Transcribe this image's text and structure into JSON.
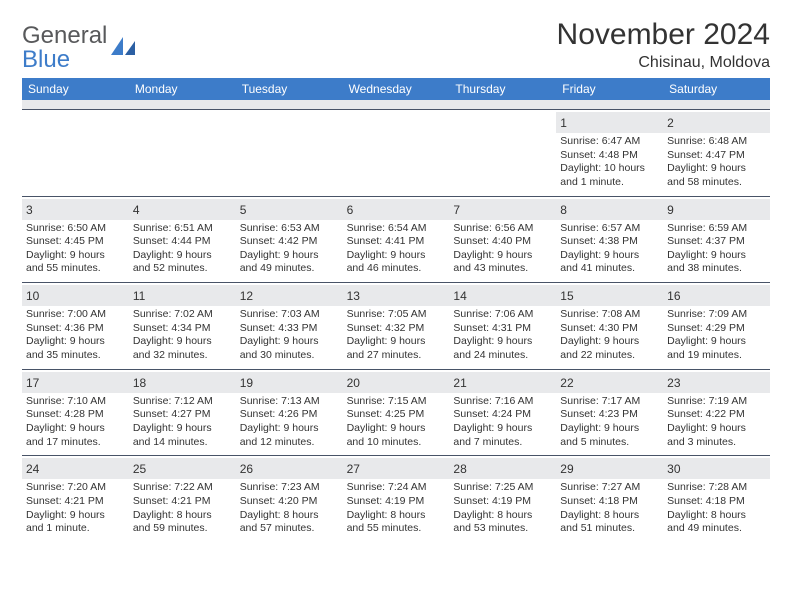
{
  "logo": {
    "word1": "General",
    "word2": "Blue",
    "accent_color": "#3d7cc9",
    "text_color": "#58595b"
  },
  "title": "November 2024",
  "subtitle": "Chisinau, Moldova",
  "header_bg": "#3d7cc9",
  "header_fg": "#ffffff",
  "daynum_bg": "#e8e9eb",
  "border_color": "#485367",
  "text_color": "#333333",
  "weekdays": [
    "Sunday",
    "Monday",
    "Tuesday",
    "Wednesday",
    "Thursday",
    "Friday",
    "Saturday"
  ],
  "weeks": [
    [
      {
        "n": "",
        "sr": "",
        "ss": "",
        "dl": ""
      },
      {
        "n": "",
        "sr": "",
        "ss": "",
        "dl": ""
      },
      {
        "n": "",
        "sr": "",
        "ss": "",
        "dl": ""
      },
      {
        "n": "",
        "sr": "",
        "ss": "",
        "dl": ""
      },
      {
        "n": "",
        "sr": "",
        "ss": "",
        "dl": ""
      },
      {
        "n": "1",
        "sr": "Sunrise: 6:47 AM",
        "ss": "Sunset: 4:48 PM",
        "dl": "Daylight: 10 hours and 1 minute."
      },
      {
        "n": "2",
        "sr": "Sunrise: 6:48 AM",
        "ss": "Sunset: 4:47 PM",
        "dl": "Daylight: 9 hours and 58 minutes."
      }
    ],
    [
      {
        "n": "3",
        "sr": "Sunrise: 6:50 AM",
        "ss": "Sunset: 4:45 PM",
        "dl": "Daylight: 9 hours and 55 minutes."
      },
      {
        "n": "4",
        "sr": "Sunrise: 6:51 AM",
        "ss": "Sunset: 4:44 PM",
        "dl": "Daylight: 9 hours and 52 minutes."
      },
      {
        "n": "5",
        "sr": "Sunrise: 6:53 AM",
        "ss": "Sunset: 4:42 PM",
        "dl": "Daylight: 9 hours and 49 minutes."
      },
      {
        "n": "6",
        "sr": "Sunrise: 6:54 AM",
        "ss": "Sunset: 4:41 PM",
        "dl": "Daylight: 9 hours and 46 minutes."
      },
      {
        "n": "7",
        "sr": "Sunrise: 6:56 AM",
        "ss": "Sunset: 4:40 PM",
        "dl": "Daylight: 9 hours and 43 minutes."
      },
      {
        "n": "8",
        "sr": "Sunrise: 6:57 AM",
        "ss": "Sunset: 4:38 PM",
        "dl": "Daylight: 9 hours and 41 minutes."
      },
      {
        "n": "9",
        "sr": "Sunrise: 6:59 AM",
        "ss": "Sunset: 4:37 PM",
        "dl": "Daylight: 9 hours and 38 minutes."
      }
    ],
    [
      {
        "n": "10",
        "sr": "Sunrise: 7:00 AM",
        "ss": "Sunset: 4:36 PM",
        "dl": "Daylight: 9 hours and 35 minutes."
      },
      {
        "n": "11",
        "sr": "Sunrise: 7:02 AM",
        "ss": "Sunset: 4:34 PM",
        "dl": "Daylight: 9 hours and 32 minutes."
      },
      {
        "n": "12",
        "sr": "Sunrise: 7:03 AM",
        "ss": "Sunset: 4:33 PM",
        "dl": "Daylight: 9 hours and 30 minutes."
      },
      {
        "n": "13",
        "sr": "Sunrise: 7:05 AM",
        "ss": "Sunset: 4:32 PM",
        "dl": "Daylight: 9 hours and 27 minutes."
      },
      {
        "n": "14",
        "sr": "Sunrise: 7:06 AM",
        "ss": "Sunset: 4:31 PM",
        "dl": "Daylight: 9 hours and 24 minutes."
      },
      {
        "n": "15",
        "sr": "Sunrise: 7:08 AM",
        "ss": "Sunset: 4:30 PM",
        "dl": "Daylight: 9 hours and 22 minutes."
      },
      {
        "n": "16",
        "sr": "Sunrise: 7:09 AM",
        "ss": "Sunset: 4:29 PM",
        "dl": "Daylight: 9 hours and 19 minutes."
      }
    ],
    [
      {
        "n": "17",
        "sr": "Sunrise: 7:10 AM",
        "ss": "Sunset: 4:28 PM",
        "dl": "Daylight: 9 hours and 17 minutes."
      },
      {
        "n": "18",
        "sr": "Sunrise: 7:12 AM",
        "ss": "Sunset: 4:27 PM",
        "dl": "Daylight: 9 hours and 14 minutes."
      },
      {
        "n": "19",
        "sr": "Sunrise: 7:13 AM",
        "ss": "Sunset: 4:26 PM",
        "dl": "Daylight: 9 hours and 12 minutes."
      },
      {
        "n": "20",
        "sr": "Sunrise: 7:15 AM",
        "ss": "Sunset: 4:25 PM",
        "dl": "Daylight: 9 hours and 10 minutes."
      },
      {
        "n": "21",
        "sr": "Sunrise: 7:16 AM",
        "ss": "Sunset: 4:24 PM",
        "dl": "Daylight: 9 hours and 7 minutes."
      },
      {
        "n": "22",
        "sr": "Sunrise: 7:17 AM",
        "ss": "Sunset: 4:23 PM",
        "dl": "Daylight: 9 hours and 5 minutes."
      },
      {
        "n": "23",
        "sr": "Sunrise: 7:19 AM",
        "ss": "Sunset: 4:22 PM",
        "dl": "Daylight: 9 hours and 3 minutes."
      }
    ],
    [
      {
        "n": "24",
        "sr": "Sunrise: 7:20 AM",
        "ss": "Sunset: 4:21 PM",
        "dl": "Daylight: 9 hours and 1 minute."
      },
      {
        "n": "25",
        "sr": "Sunrise: 7:22 AM",
        "ss": "Sunset: 4:21 PM",
        "dl": "Daylight: 8 hours and 59 minutes."
      },
      {
        "n": "26",
        "sr": "Sunrise: 7:23 AM",
        "ss": "Sunset: 4:20 PM",
        "dl": "Daylight: 8 hours and 57 minutes."
      },
      {
        "n": "27",
        "sr": "Sunrise: 7:24 AM",
        "ss": "Sunset: 4:19 PM",
        "dl": "Daylight: 8 hours and 55 minutes."
      },
      {
        "n": "28",
        "sr": "Sunrise: 7:25 AM",
        "ss": "Sunset: 4:19 PM",
        "dl": "Daylight: 8 hours and 53 minutes."
      },
      {
        "n": "29",
        "sr": "Sunrise: 7:27 AM",
        "ss": "Sunset: 4:18 PM",
        "dl": "Daylight: 8 hours and 51 minutes."
      },
      {
        "n": "30",
        "sr": "Sunrise: 7:28 AM",
        "ss": "Sunset: 4:18 PM",
        "dl": "Daylight: 8 hours and 49 minutes."
      }
    ]
  ]
}
